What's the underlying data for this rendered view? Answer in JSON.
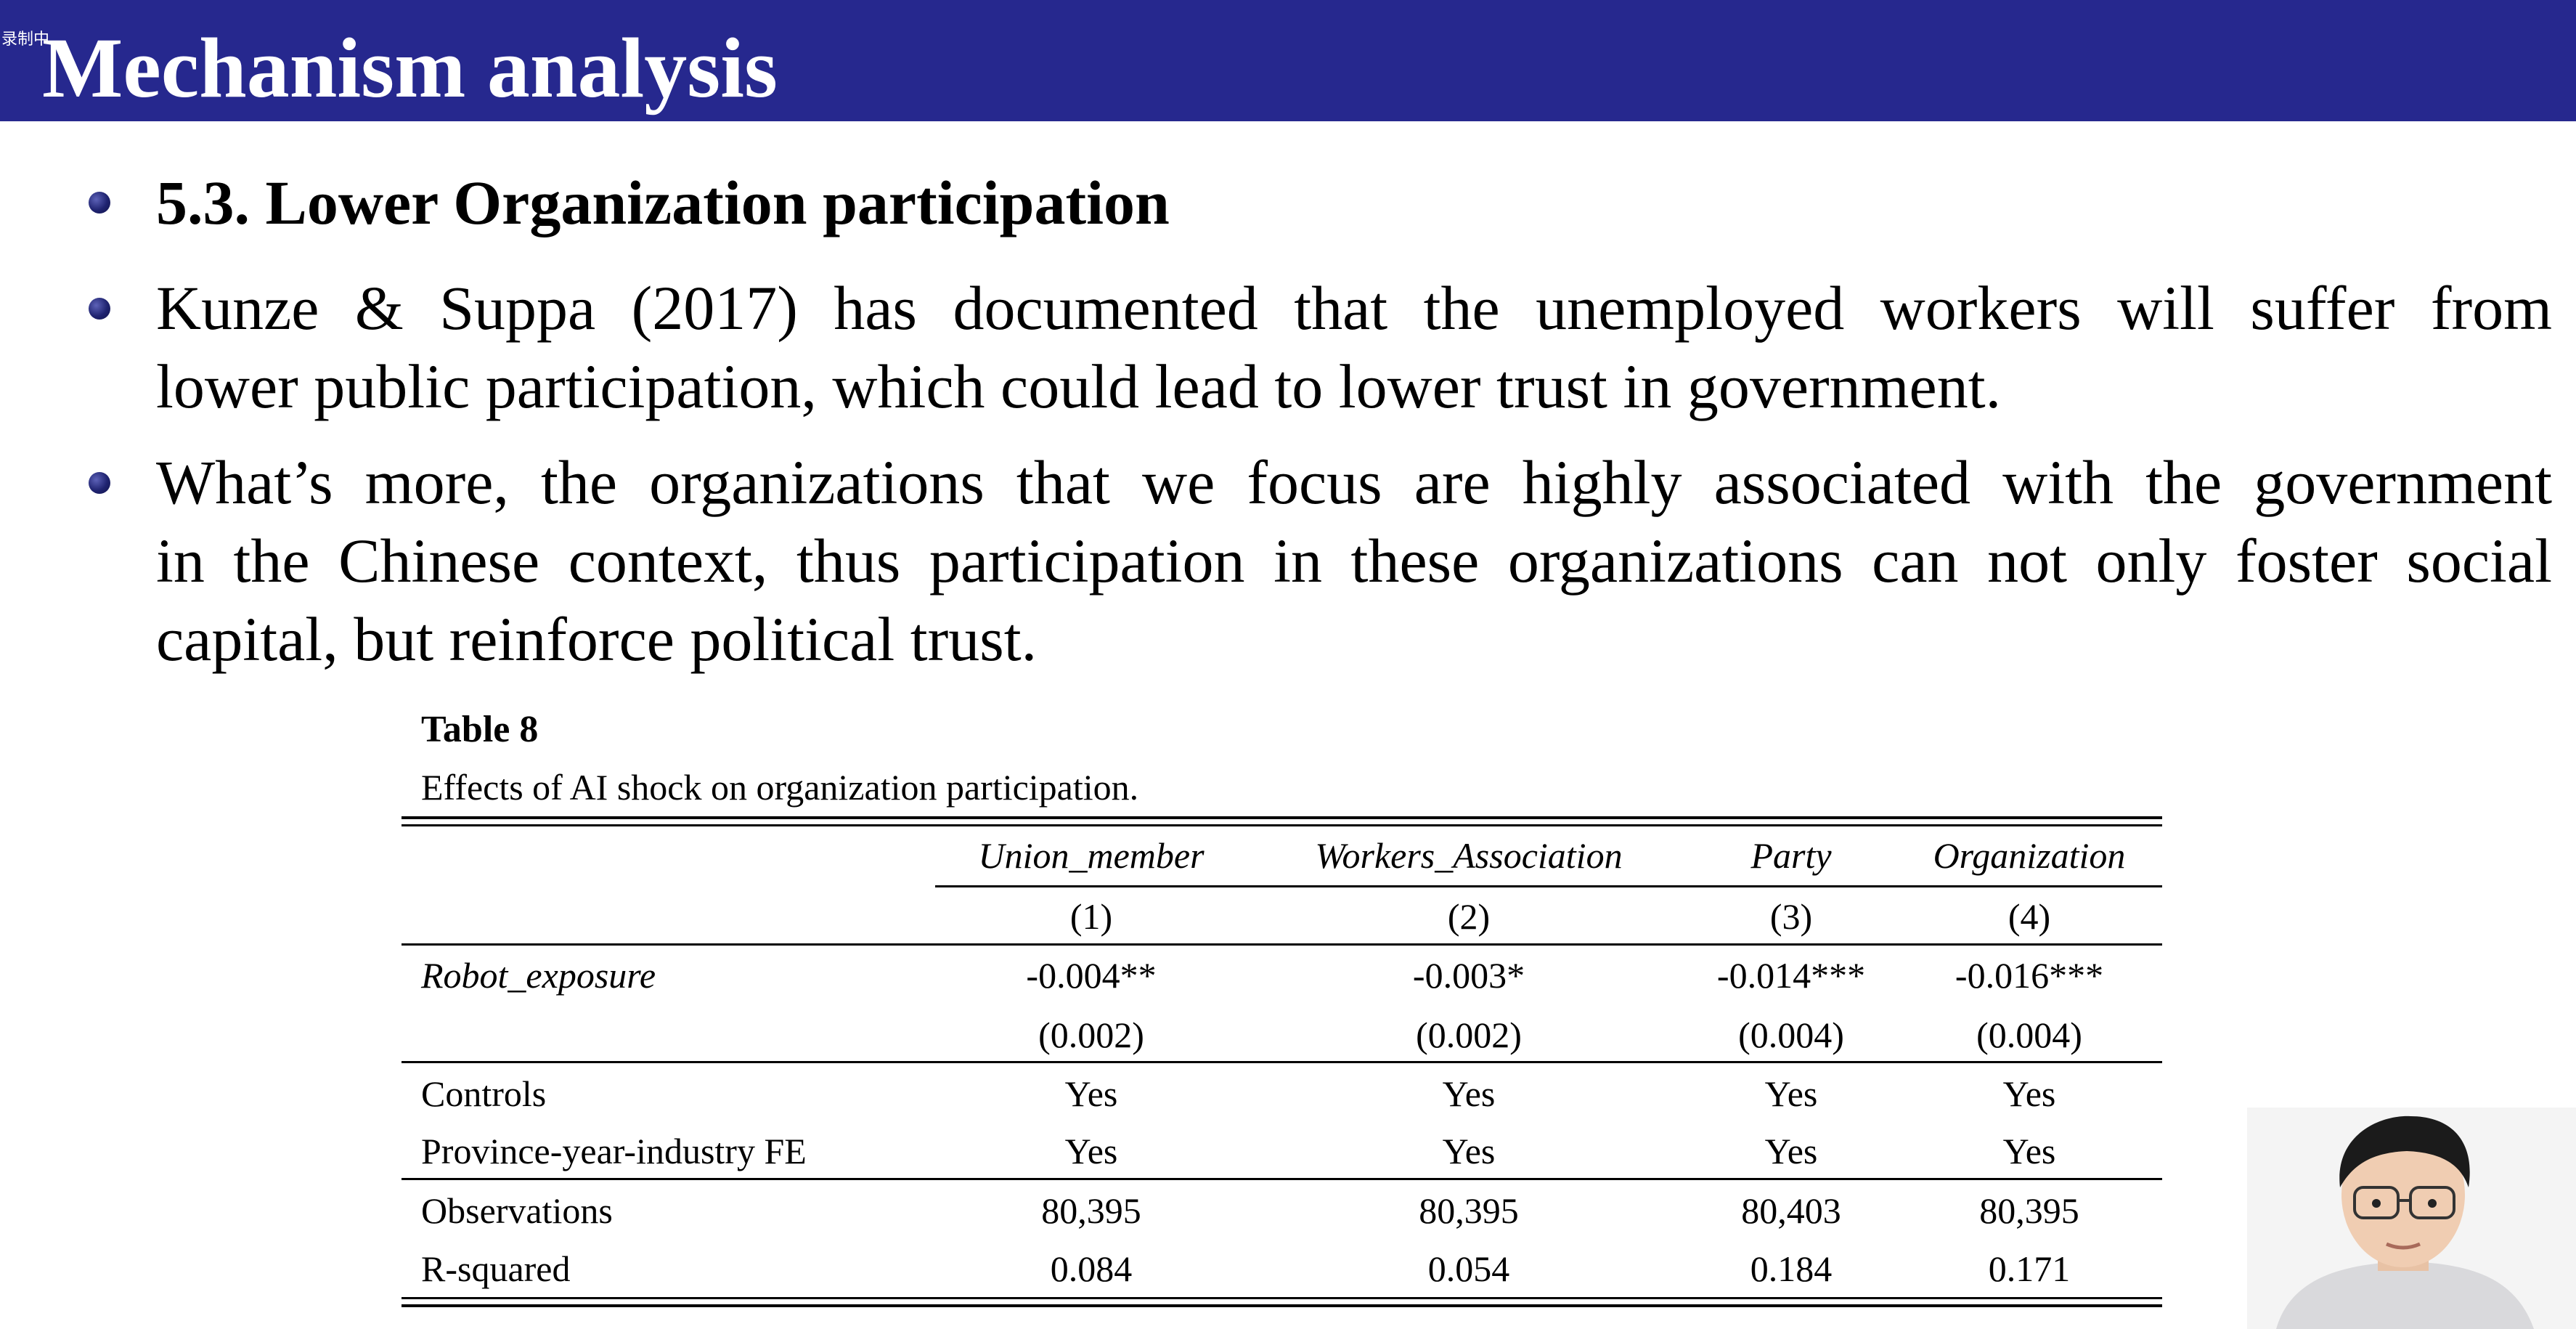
{
  "recording_badge": "录制中",
  "slide": {
    "title": "Mechanism analysis",
    "bullets": [
      {
        "line1": "5.3. Lower Organization participation"
      },
      {
        "line1": "Kunze & Suppa (2017) has documented that the unemployed workers will suffer from",
        "line2": "lower public participation, which could lead to lower trust in government."
      },
      {
        "line1": "What’s more, the organizations that we focus are highly associated with the government",
        "line2": "in the Chinese context, thus participation in these organizations can not only foster social",
        "line3": "capital, but reinforce political trust."
      }
    ]
  },
  "table": {
    "title": "Table 8",
    "caption": "Effects of AI shock on organization participation.",
    "columns": [
      "Union_member",
      "Workers_Association",
      "Party",
      "Organization"
    ],
    "column_numbers": [
      "(1)",
      "(2)",
      "(3)",
      "(4)"
    ],
    "rows": [
      {
        "label": "Robot_exposure",
        "values": [
          "-0.004**",
          "-0.003*",
          "-0.014***",
          "-0.016***"
        ]
      },
      {
        "label": "",
        "values": [
          "(0.002)",
          "(0.002)",
          "(0.004)",
          "(0.004)"
        ]
      },
      {
        "label": "Controls",
        "values": [
          "Yes",
          "Yes",
          "Yes",
          "Yes"
        ]
      },
      {
        "label": "Province-year-industry FE",
        "values": [
          "Yes",
          "Yes",
          "Yes",
          "Yes"
        ]
      },
      {
        "label": "Observations",
        "values": [
          "80,395",
          "80,395",
          "80,403",
          "80,395"
        ]
      },
      {
        "label": "R-squared",
        "values": [
          "0.084",
          "0.054",
          "0.184",
          "0.171"
        ]
      }
    ]
  },
  "colors": {
    "header_background": "#26288e",
    "bullet": "#1f2370"
  }
}
